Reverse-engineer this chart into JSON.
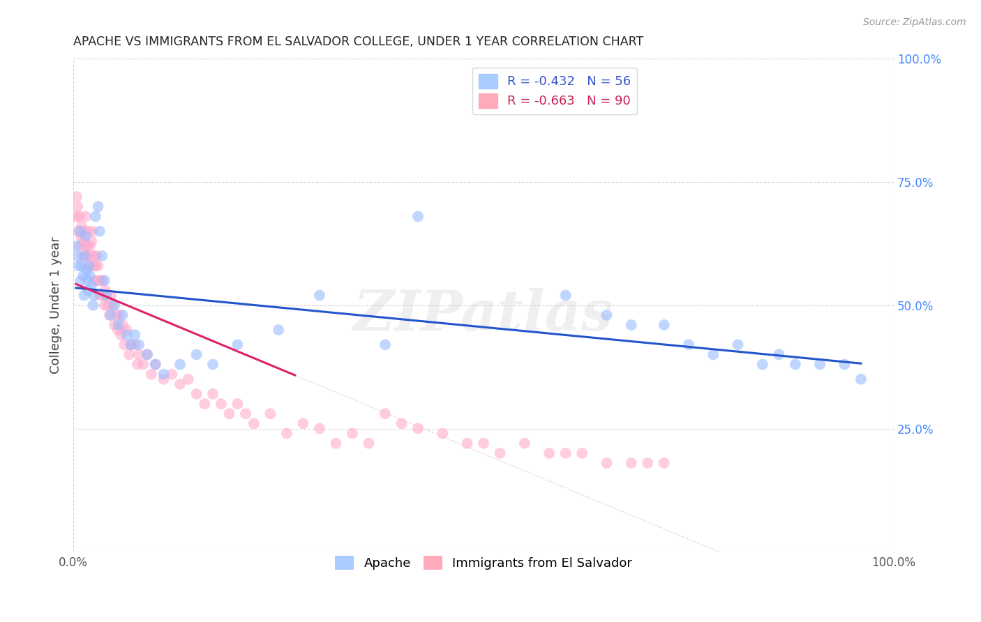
{
  "title": "APACHE VS IMMIGRANTS FROM EL SALVADOR COLLEGE, UNDER 1 YEAR CORRELATION CHART",
  "source": "Source: ZipAtlas.com",
  "ylabel": "College, Under 1 year",
  "xlim": [
    0.0,
    1.0
  ],
  "ylim": [
    0.0,
    1.0
  ],
  "grid_color": "#cccccc",
  "background_color": "#ffffff",
  "watermark": "ZIPatlas",
  "apache": {
    "color": "#99bbff",
    "trendline_color": "#2255cc",
    "x": [
      0.003,
      0.005,
      0.006,
      0.008,
      0.009,
      0.01,
      0.012,
      0.013,
      0.014,
      0.015,
      0.016,
      0.017,
      0.018,
      0.019,
      0.02,
      0.022,
      0.024,
      0.025,
      0.027,
      0.03,
      0.032,
      0.035,
      0.038,
      0.04,
      0.045,
      0.05,
      0.055,
      0.06,
      0.065,
      0.07,
      0.075,
      0.08,
      0.09,
      0.1,
      0.11,
      0.13,
      0.15,
      0.17,
      0.2,
      0.25,
      0.3,
      0.38,
      0.42,
      0.6,
      0.65,
      0.68,
      0.72,
      0.75,
      0.78,
      0.81,
      0.84,
      0.86,
      0.88,
      0.91,
      0.94,
      0.96
    ],
    "y": [
      0.62,
      0.6,
      0.58,
      0.65,
      0.55,
      0.58,
      0.56,
      0.52,
      0.6,
      0.64,
      0.57,
      0.55,
      0.53,
      0.58,
      0.56,
      0.54,
      0.5,
      0.52,
      0.68,
      0.7,
      0.65,
      0.6,
      0.55,
      0.52,
      0.48,
      0.5,
      0.46,
      0.48,
      0.44,
      0.42,
      0.44,
      0.42,
      0.4,
      0.38,
      0.36,
      0.38,
      0.4,
      0.38,
      0.42,
      0.45,
      0.52,
      0.42,
      0.68,
      0.52,
      0.48,
      0.46,
      0.46,
      0.42,
      0.4,
      0.42,
      0.38,
      0.4,
      0.38,
      0.38,
      0.38,
      0.35
    ]
  },
  "el_salvador": {
    "color": "#ffaacc",
    "trendline_color": "#dd2266",
    "x": [
      0.003,
      0.004,
      0.005,
      0.006,
      0.007,
      0.008,
      0.009,
      0.01,
      0.011,
      0.012,
      0.013,
      0.014,
      0.015,
      0.016,
      0.017,
      0.018,
      0.019,
      0.02,
      0.021,
      0.022,
      0.023,
      0.024,
      0.025,
      0.026,
      0.027,
      0.028,
      0.029,
      0.03,
      0.032,
      0.033,
      0.035,
      0.036,
      0.038,
      0.039,
      0.04,
      0.042,
      0.044,
      0.046,
      0.048,
      0.05,
      0.052,
      0.054,
      0.056,
      0.058,
      0.06,
      0.062,
      0.065,
      0.068,
      0.07,
      0.075,
      0.078,
      0.08,
      0.085,
      0.09,
      0.095,
      0.1,
      0.11,
      0.12,
      0.13,
      0.14,
      0.15,
      0.16,
      0.17,
      0.18,
      0.19,
      0.2,
      0.21,
      0.22,
      0.24,
      0.26,
      0.28,
      0.3,
      0.32,
      0.34,
      0.36,
      0.38,
      0.4,
      0.42,
      0.45,
      0.48,
      0.5,
      0.52,
      0.55,
      0.58,
      0.6,
      0.62,
      0.65,
      0.68,
      0.7,
      0.72
    ],
    "y": [
      0.68,
      0.72,
      0.7,
      0.65,
      0.68,
      0.62,
      0.64,
      0.66,
      0.6,
      0.63,
      0.65,
      0.62,
      0.68,
      0.6,
      0.62,
      0.65,
      0.58,
      0.62,
      0.6,
      0.63,
      0.65,
      0.58,
      0.6,
      0.55,
      0.58,
      0.6,
      0.55,
      0.58,
      0.52,
      0.55,
      0.55,
      0.52,
      0.5,
      0.53,
      0.52,
      0.5,
      0.48,
      0.52,
      0.5,
      0.46,
      0.48,
      0.45,
      0.48,
      0.44,
      0.46,
      0.42,
      0.45,
      0.4,
      0.42,
      0.42,
      0.38,
      0.4,
      0.38,
      0.4,
      0.36,
      0.38,
      0.35,
      0.36,
      0.34,
      0.35,
      0.32,
      0.3,
      0.32,
      0.3,
      0.28,
      0.3,
      0.28,
      0.26,
      0.28,
      0.24,
      0.26,
      0.25,
      0.22,
      0.24,
      0.22,
      0.28,
      0.26,
      0.25,
      0.24,
      0.22,
      0.22,
      0.2,
      0.22,
      0.2,
      0.2,
      0.2,
      0.18,
      0.18,
      0.18,
      0.18
    ]
  }
}
